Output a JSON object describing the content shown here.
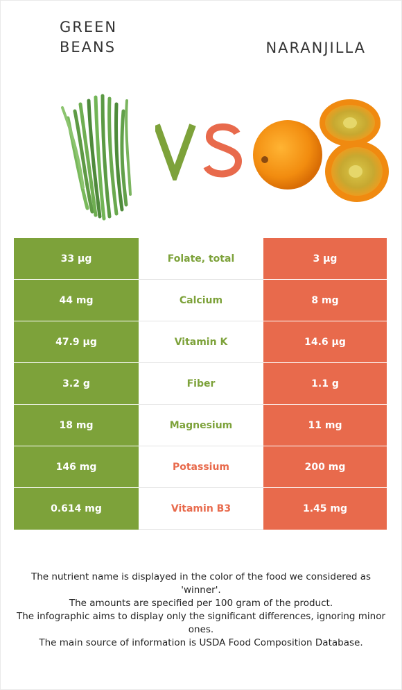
{
  "left_food": {
    "name": "Green\nBeans",
    "color": "#7da23a"
  },
  "right_food": {
    "name": "Naranjilla",
    "color": "#e86a4c"
  },
  "vs": {
    "v": "V",
    "s": "S"
  },
  "rows": [
    {
      "nutrient": "Folate, total",
      "left": "33 µg",
      "right": "3 µg",
      "winner": "left"
    },
    {
      "nutrient": "Calcium",
      "left": "44 mg",
      "right": "8 mg",
      "winner": "left"
    },
    {
      "nutrient": "Vitamin K",
      "left": "47.9 µg",
      "right": "14.6 µg",
      "winner": "left"
    },
    {
      "nutrient": "Fiber",
      "left": "3.2 g",
      "right": "1.1 g",
      "winner": "left"
    },
    {
      "nutrient": "Magnesium",
      "left": "18 mg",
      "right": "11 mg",
      "winner": "left"
    },
    {
      "nutrient": "Potassium",
      "left": "146 mg",
      "right": "200 mg",
      "winner": "right"
    },
    {
      "nutrient": "Vitamin B3",
      "left": "0.614 mg",
      "right": "1.45 mg",
      "winner": "right"
    }
  ],
  "notes": [
    "The nutrient name is displayed in the color of the food we considered as 'winner'.",
    "The amounts are specified per 100 gram of the product.",
    "The infographic aims to display only the significant differences, ignoring minor ones.",
    "The main source of information is USDA Food Composition Database."
  ]
}
